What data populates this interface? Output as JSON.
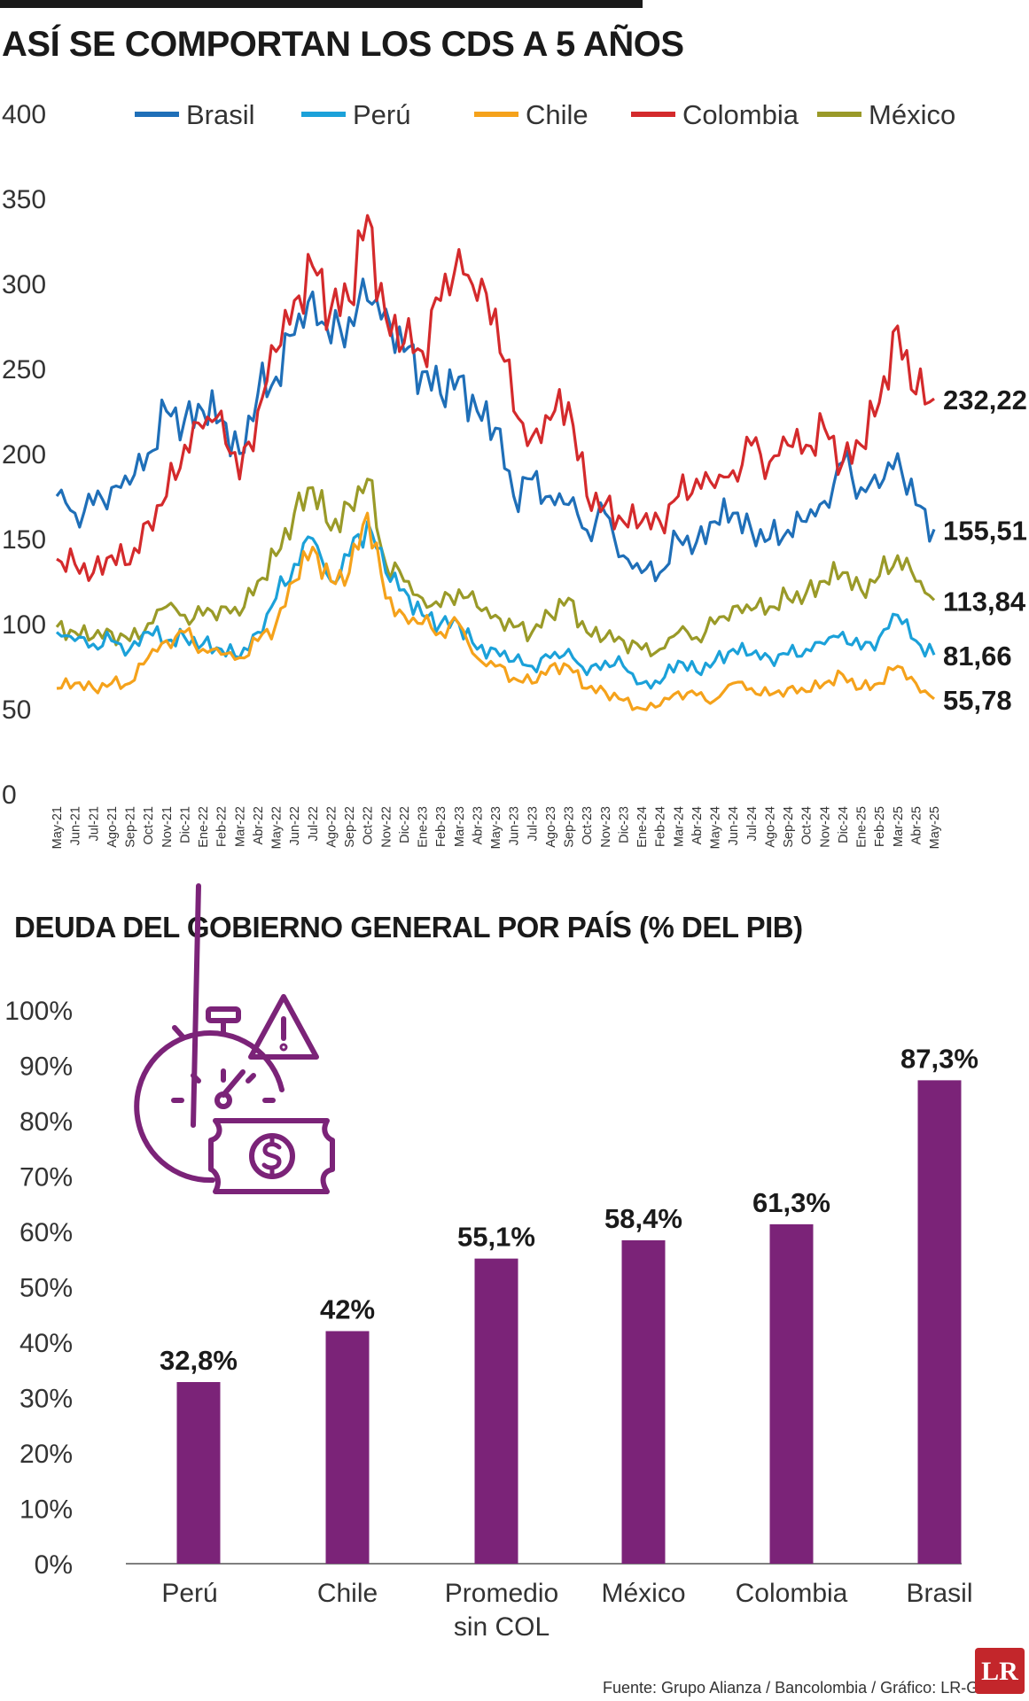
{
  "chart_data": [
    {
      "type": "line",
      "title": "ASÍ SE COMPORTAN LOS CDS A 5 AÑOS",
      "ylim": [
        0,
        400
      ],
      "yticks": [
        0,
        50,
        100,
        150,
        200,
        250,
        300,
        350,
        400
      ],
      "categories": [
        "May-21",
        "Jun-21",
        "Jul-21",
        "Ago-21",
        "Sep-21",
        "Oct-21",
        "Nov-21",
        "Dic-21",
        "Ene-22",
        "Feb-22",
        "Mar-22",
        "Abr-22",
        "May-22",
        "Jun-22",
        "Jul-22",
        "Ago-22",
        "Sep-22",
        "Oct-22",
        "Nov-22",
        "Dic-22",
        "Ene-23",
        "Feb-23",
        "Mar-23",
        "Abr-23",
        "May-23",
        "Jun-23",
        "Jul-23",
        "Ago-23",
        "Sep-23",
        "Oct-23",
        "Nov-23",
        "Dic-23",
        "Ene-24",
        "Feb-24",
        "Mar-24",
        "Abr-24",
        "May-24",
        "Jun-24",
        "Jul-24",
        "Ago-24",
        "Sep-24",
        "Oct-24",
        "Nov-24",
        "Dic-24",
        "Ene-25",
        "Feb-25",
        "Mar-25",
        "Abr-25",
        "May-25"
      ],
      "series": [
        {
          "name": "Brasil",
          "color": "#1f6fb8",
          "last_label": "155,51",
          "values": [
            175,
            165,
            170,
            180,
            182,
            200,
            225,
            220,
            225,
            220,
            200,
            235,
            245,
            270,
            295,
            265,
            280,
            290,
            285,
            260,
            248,
            235,
            245,
            225,
            215,
            175,
            185,
            175,
            170,
            155,
            165,
            140,
            130,
            130,
            150,
            148,
            160,
            165,
            155,
            150,
            155,
            160,
            172,
            195,
            180,
            180,
            200,
            170,
            155.51
          ]
        },
        {
          "name": "Perú",
          "color": "#1ba1d9",
          "last_label": "81,66",
          "values": [
            95,
            90,
            88,
            90,
            85,
            95,
            90,
            92,
            88,
            85,
            80,
            95,
            115,
            135,
            150,
            125,
            140,
            160,
            130,
            120,
            105,
            100,
            100,
            85,
            85,
            78,
            75,
            80,
            85,
            70,
            78,
            75,
            65,
            65,
            78,
            72,
            78,
            85,
            82,
            80,
            82,
            85,
            88,
            95,
            85,
            92,
            105,
            90,
            81.66
          ]
        },
        {
          "name": "Chile",
          "color": "#f5a21b",
          "last_label": "55,78",
          "values": [
            62,
            65,
            62,
            65,
            65,
            80,
            90,
            95,
            85,
            82,
            80,
            90,
            100,
            125,
            145,
            125,
            130,
            165,
            115,
            105,
            100,
            95,
            100,
            80,
            75,
            68,
            65,
            75,
            75,
            62,
            60,
            55,
            50,
            52,
            60,
            58,
            55,
            65,
            62,
            58,
            62,
            60,
            65,
            70,
            62,
            65,
            75,
            65,
            55.78
          ]
        },
        {
          "name": "Colombia",
          "color": "#d42a2c",
          "last_label": "232,22",
          "values": [
            138,
            135,
            130,
            140,
            135,
            160,
            175,
            205,
            215,
            225,
            185,
            225,
            260,
            290,
            310,
            285,
            290,
            340,
            280,
            265,
            260,
            290,
            320,
            290,
            285,
            225,
            210,
            220,
            230,
            175,
            170,
            160,
            160,
            160,
            175,
            185,
            180,
            190,
            205,
            195,
            205,
            205,
            215,
            195,
            205,
            230,
            275,
            235,
            232.22
          ]
        },
        {
          "name": "México",
          "color": "#9a9a28",
          "last_label": "113,84",
          "values": [
            98,
            95,
            92,
            95,
            90,
            100,
            110,
            105,
            105,
            110,
            105,
            125,
            140,
            165,
            180,
            155,
            170,
            185,
            135,
            125,
            115,
            110,
            120,
            110,
            105,
            98,
            95,
            105,
            115,
            95,
            92,
            90,
            85,
            85,
            95,
            92,
            100,
            110,
            108,
            110,
            115,
            118,
            125,
            130,
            120,
            128,
            140,
            125,
            113.84
          ]
        }
      ]
    },
    {
      "type": "bar",
      "title": "DEUDA DEL GOBIERNO GENERAL POR PAÍS (% DEL PIB)",
      "ylim": [
        0,
        100
      ],
      "yticks": [
        "0%",
        "10%",
        "20%",
        "30%",
        "40%",
        "50%",
        "60%",
        "70%",
        "80%",
        "90%",
        "100%"
      ],
      "categories": [
        "Perú",
        "Chile",
        "Promedio sin COL",
        "México",
        "Colombia",
        "Brasil"
      ],
      "values": [
        32.8,
        42,
        55.1,
        58.4,
        61.3,
        87.3
      ],
      "value_labels": [
        "32,8%",
        "42%",
        "55,1%",
        "58,4%",
        "61,3%",
        "87,3%"
      ],
      "color": "#7b2378"
    }
  ],
  "footer": {
    "source": "Fuente: Grupo Alianza / Bancolombia / Gráfico: LR-GR",
    "logo": "LR",
    "logo_color": "#c3262b"
  },
  "icons": [
    "stopwatch-icon",
    "warning-icon",
    "money-bill-icon"
  ]
}
